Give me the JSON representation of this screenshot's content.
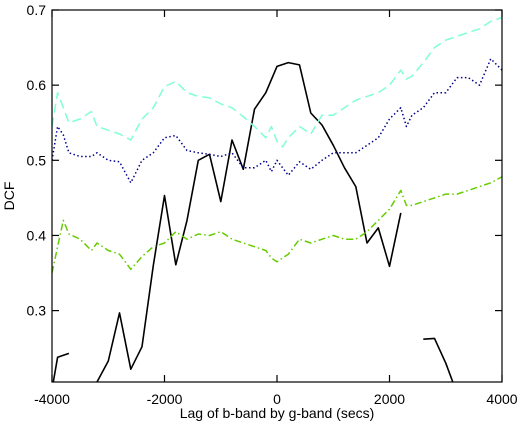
{
  "chart_data": {
    "type": "line",
    "xlabel": "Lag of b-band by g-band (secs)",
    "ylabel": "DCF",
    "xlim": [
      -4000,
      4000
    ],
    "ylim": [
      0.205,
      0.7
    ],
    "xticks": [
      -4000,
      -2000,
      0,
      2000,
      4000
    ],
    "yticks": [
      0.3,
      0.4,
      0.5,
      0.6,
      0.7
    ],
    "xtick_labels": [
      "-4000",
      "-2000",
      "0",
      "2000",
      "4000"
    ],
    "ytick_labels": [
      "0.3",
      "0.4",
      "0.5",
      "0.6",
      "0.7"
    ],
    "grid": false,
    "legend": "none",
    "series": [
      {
        "color": "#000000",
        "style": "solid",
        "x": [
          -4000,
          -3900,
          -3700,
          -3600,
          -3400,
          -3200,
          -3000,
          -2800,
          -2600,
          -2400,
          -2200,
          -2000,
          -1800,
          -1600,
          -1400,
          -1200,
          -1000,
          -800,
          -600,
          -400,
          -200,
          0,
          200,
          400,
          600,
          800,
          1000,
          1200,
          1400,
          1600,
          1800,
          2000,
          2200,
          2400,
          2600,
          2800,
          3000,
          3200
        ],
        "y": [
          0.195,
          0.238,
          0.243,
          0.205,
          0.19,
          0.205,
          0.233,
          0.297,
          0.222,
          0.252,
          0.36,
          0.453,
          0.361,
          0.42,
          0.5,
          0.508,
          0.445,
          0.527,
          0.488,
          0.568,
          0.59,
          0.625,
          0.63,
          0.627,
          0.563,
          0.547,
          0.52,
          0.49,
          0.465,
          0.39,
          0.41,
          0.359,
          0.43,
          0.195,
          0.262,
          0.263,
          0.23,
          0.19
        ],
        "gaps_after": [
          2,
          3,
          32,
          33
        ]
      },
      {
        "color": "#00008b",
        "style": "dotted",
        "x": [
          -4000,
          -3900,
          -3800,
          -3700,
          -3500,
          -3300,
          -3200,
          -3000,
          -2800,
          -2600,
          -2400,
          -2200,
          -2000,
          -1800,
          -1600,
          -1400,
          -1200,
          -1000,
          -800,
          -600,
          -400,
          -200,
          -100,
          0,
          100,
          200,
          400,
          600,
          800,
          1000,
          1200,
          1400,
          1600,
          1800,
          2000,
          2200,
          2300,
          2400,
          2600,
          2800,
          3000,
          3200,
          3400,
          3600,
          3800,
          4000
        ],
        "y": [
          0.5,
          0.545,
          0.534,
          0.51,
          0.505,
          0.505,
          0.51,
          0.5,
          0.498,
          0.47,
          0.5,
          0.51,
          0.53,
          0.533,
          0.513,
          0.51,
          0.508,
          0.505,
          0.51,
          0.49,
          0.49,
          0.5,
          0.485,
          0.5,
          0.49,
          0.48,
          0.498,
          0.488,
          0.5,
          0.51,
          0.51,
          0.51,
          0.52,
          0.53,
          0.555,
          0.57,
          0.545,
          0.56,
          0.57,
          0.59,
          0.59,
          0.61,
          0.61,
          0.6,
          0.635,
          0.62
        ],
        "gaps_after": []
      },
      {
        "color": "#7fffd4",
        "style": "dashed",
        "x": [
          -4000,
          -3900,
          -3800,
          -3700,
          -3500,
          -3300,
          -3200,
          -3000,
          -2800,
          -2600,
          -2400,
          -2200,
          -2000,
          -1800,
          -1600,
          -1400,
          -1200,
          -1000,
          -800,
          -600,
          -400,
          -200,
          -100,
          0,
          100,
          200,
          400,
          600,
          800,
          1000,
          1200,
          1400,
          1600,
          1800,
          2000,
          2200,
          2300,
          2400,
          2600,
          2800,
          3000,
          3200,
          3400,
          3600,
          3800,
          4000
        ],
        "y": [
          0.545,
          0.59,
          0.57,
          0.55,
          0.555,
          0.565,
          0.545,
          0.54,
          0.535,
          0.527,
          0.555,
          0.57,
          0.598,
          0.605,
          0.59,
          0.585,
          0.583,
          0.575,
          0.57,
          0.558,
          0.545,
          0.53,
          0.545,
          0.525,
          0.518,
          0.53,
          0.545,
          0.535,
          0.56,
          0.56,
          0.57,
          0.58,
          0.585,
          0.59,
          0.6,
          0.62,
          0.608,
          0.612,
          0.63,
          0.65,
          0.66,
          0.665,
          0.67,
          0.675,
          0.685,
          0.69
        ],
        "gaps_after": []
      },
      {
        "color": "#66cc00",
        "style": "dashdot",
        "x": [
          -4000,
          -3900,
          -3800,
          -3700,
          -3500,
          -3300,
          -3200,
          -3000,
          -2800,
          -2600,
          -2400,
          -2200,
          -2000,
          -1800,
          -1600,
          -1400,
          -1200,
          -1000,
          -800,
          -600,
          -400,
          -200,
          -100,
          0,
          100,
          200,
          400,
          600,
          800,
          1000,
          1200,
          1400,
          1600,
          1800,
          2000,
          2200,
          2300,
          2400,
          2600,
          2800,
          3000,
          3200,
          3400,
          3600,
          3800,
          4000
        ],
        "y": [
          0.35,
          0.385,
          0.42,
          0.402,
          0.395,
          0.38,
          0.39,
          0.38,
          0.375,
          0.355,
          0.372,
          0.385,
          0.39,
          0.405,
          0.395,
          0.402,
          0.4,
          0.405,
          0.395,
          0.39,
          0.385,
          0.38,
          0.37,
          0.365,
          0.37,
          0.375,
          0.395,
          0.39,
          0.395,
          0.4,
          0.395,
          0.395,
          0.405,
          0.42,
          0.435,
          0.46,
          0.44,
          0.44,
          0.445,
          0.45,
          0.455,
          0.455,
          0.46,
          0.465,
          0.47,
          0.478
        ],
        "gaps_after": []
      }
    ]
  }
}
